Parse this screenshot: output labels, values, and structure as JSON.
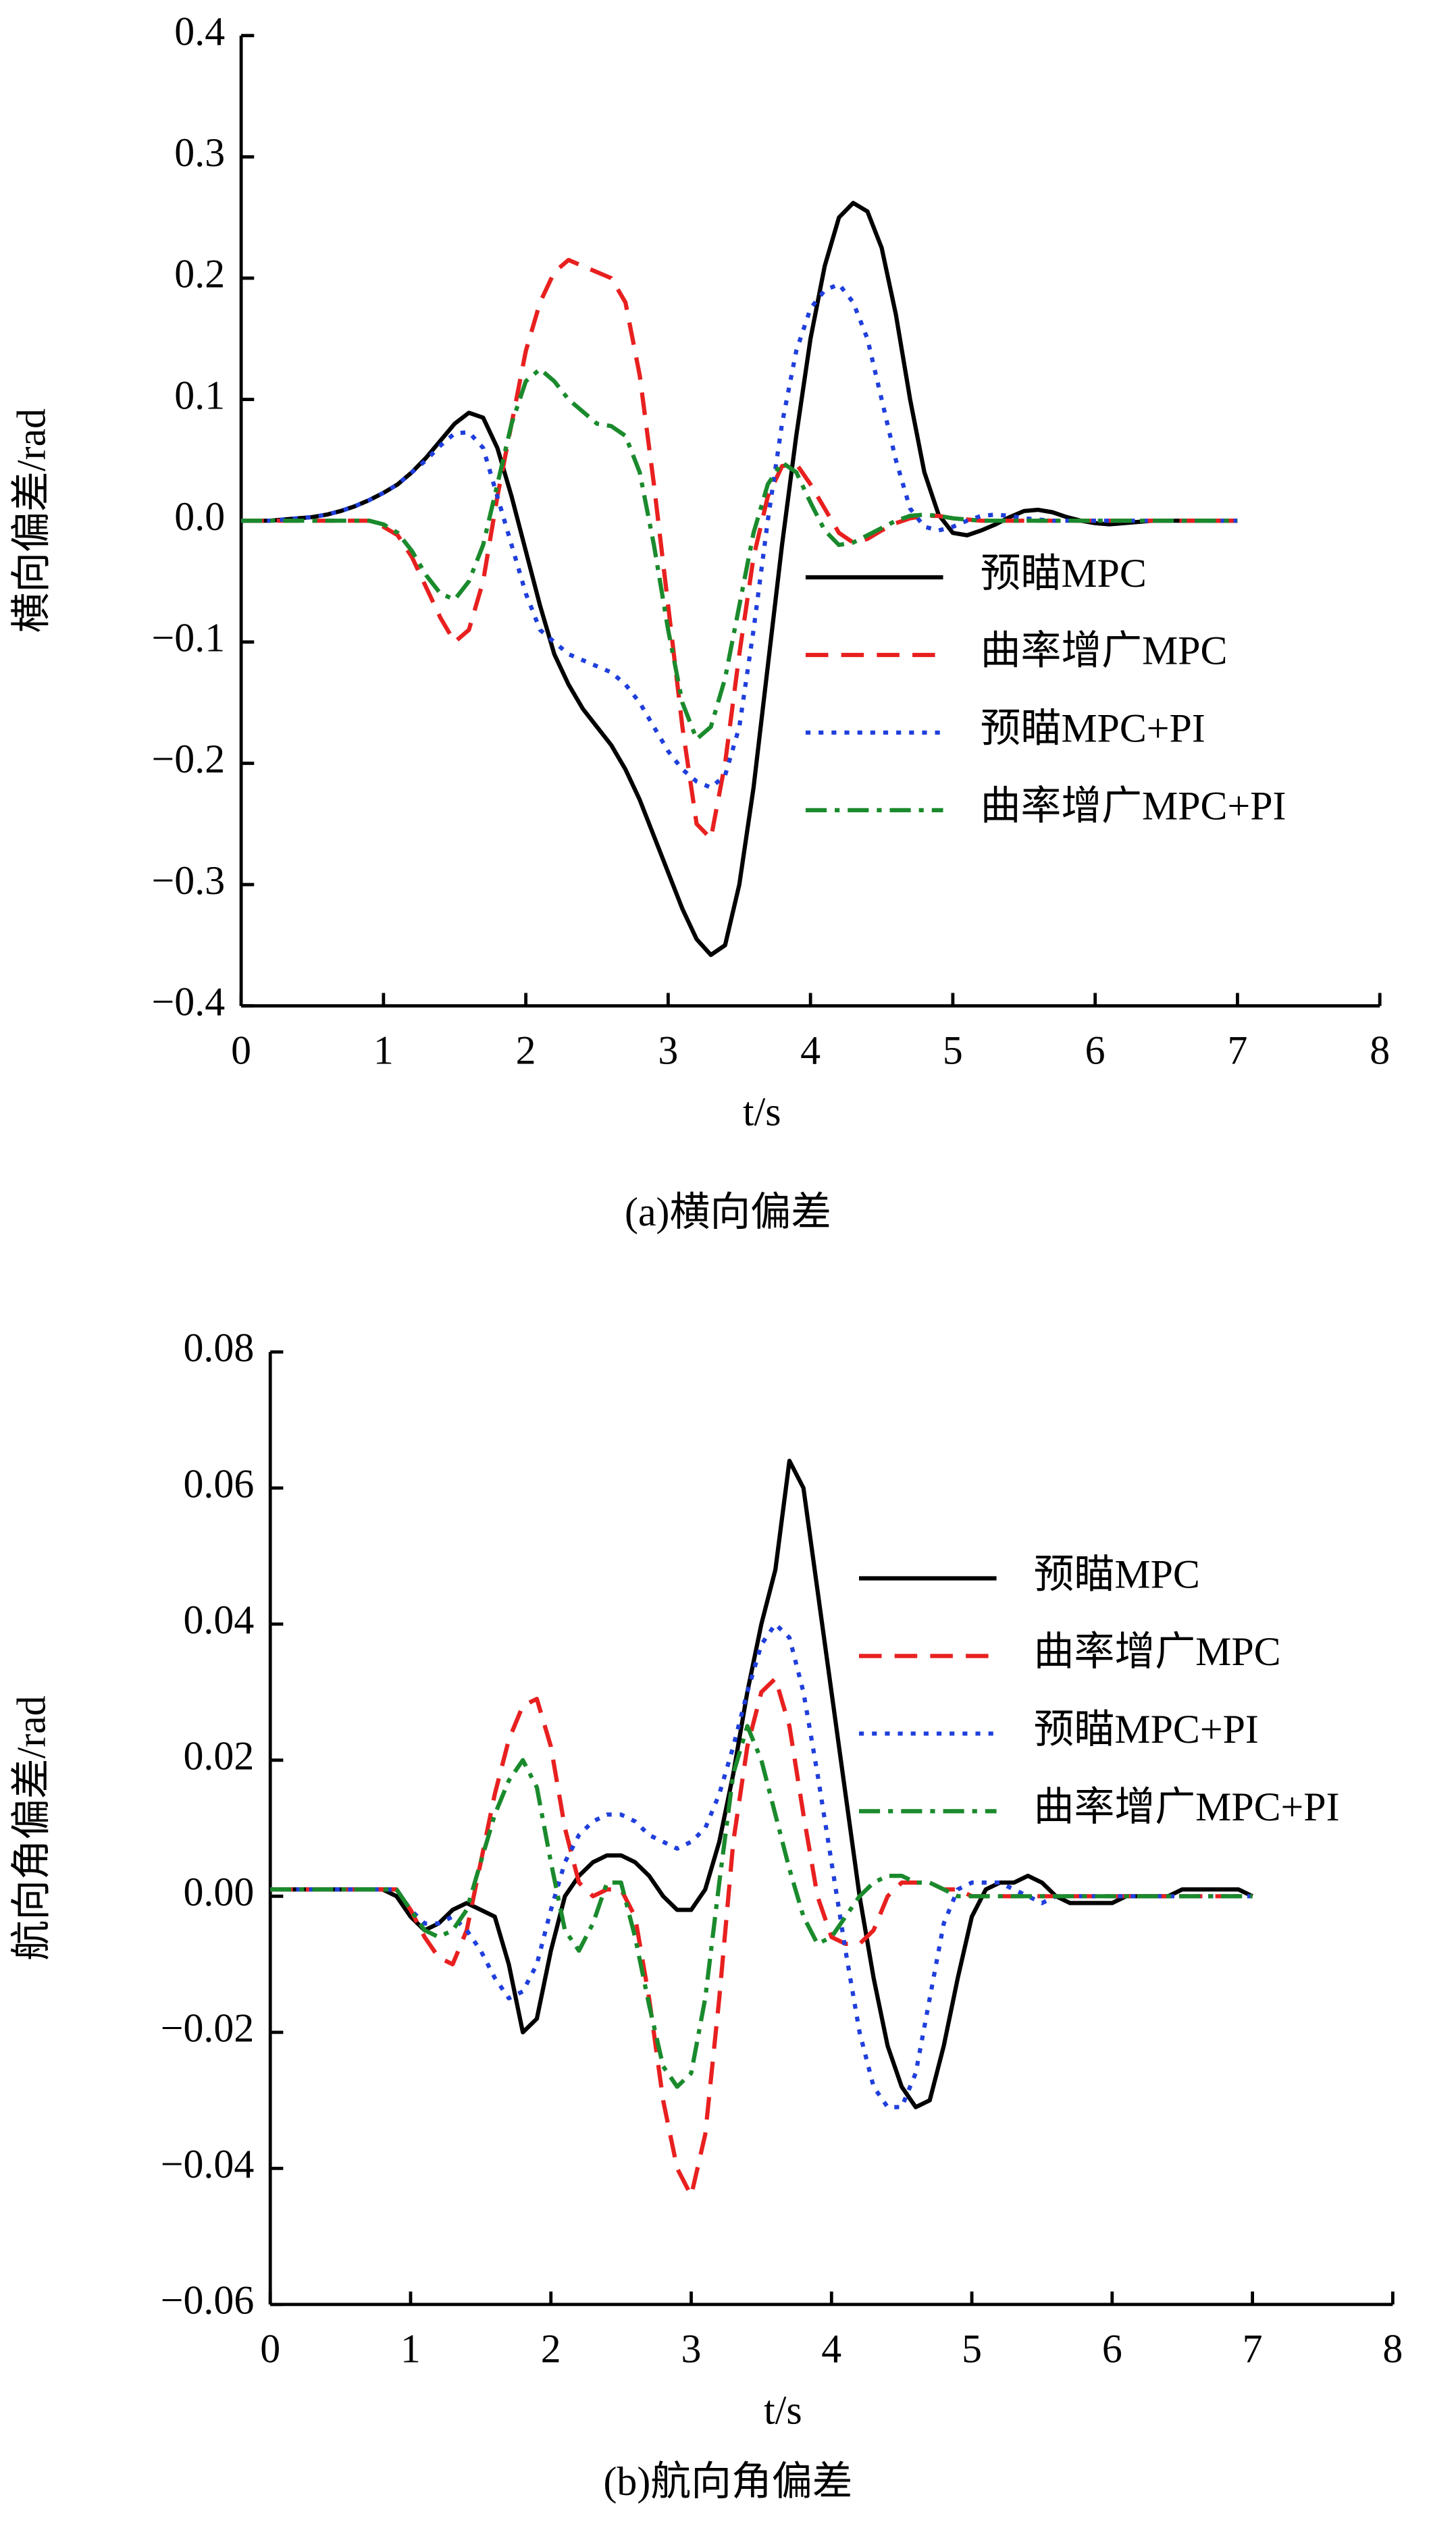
{
  "chart_data": [
    {
      "type": "line",
      "caption": "(a)横向偏差",
      "xlabel": "t/s",
      "ylabel": "横向偏差/rad",
      "x": [
        0,
        0.1,
        0.2,
        0.3,
        0.4,
        0.5,
        0.6,
        0.7,
        0.8,
        0.9,
        1,
        1.1,
        1.2,
        1.3,
        1.4,
        1.5,
        1.6,
        1.7,
        1.8,
        1.9,
        2,
        2.1,
        2.2,
        2.3,
        2.4,
        2.5,
        2.6,
        2.7,
        2.8,
        2.9,
        3,
        3.1,
        3.2,
        3.3,
        3.4,
        3.5,
        3.6,
        3.7,
        3.8,
        3.9,
        4,
        4.1,
        4.2,
        4.3,
        4.4,
        4.5,
        4.6,
        4.7,
        4.8,
        4.9,
        5,
        5.1,
        5.2,
        5.3,
        5.4,
        5.5,
        5.6,
        5.7,
        5.8,
        5.9,
        6,
        6.1,
        6.2,
        6.3,
        6.4,
        6.5,
        6.6,
        6.7,
        6.8,
        6.9,
        7
      ],
      "series": [
        {
          "name": "预瞄MPC",
          "color": "#000000",
          "linestyle": "solid",
          "values": [
            0,
            0,
            0,
            0.001,
            0.002,
            0.003,
            0.005,
            0.008,
            0.012,
            0.017,
            0.023,
            0.03,
            0.04,
            0.052,
            0.066,
            0.08,
            0.089,
            0.085,
            0.06,
            0.02,
            -0.025,
            -0.07,
            -0.11,
            -0.135,
            -0.155,
            -0.17,
            -0.185,
            -0.205,
            -0.23,
            -0.26,
            -0.29,
            -0.32,
            -0.345,
            -0.358,
            -0.35,
            -0.3,
            -0.22,
            -0.12,
            -0.02,
            0.07,
            0.15,
            0.21,
            0.25,
            0.262,
            0.255,
            0.225,
            0.17,
            0.1,
            0.04,
            0.005,
            -0.01,
            -0.012,
            -0.008,
            -0.003,
            0.003,
            0.008,
            0.009,
            0.007,
            0.003,
            0,
            -0.002,
            -0.003,
            -0.002,
            -0.001,
            0,
            0,
            0,
            0,
            0,
            0,
            0
          ]
        },
        {
          "name": "曲率增广MPC",
          "color": "#e8201f",
          "linestyle": "dashed",
          "values": [
            0,
            0,
            0,
            0,
            0,
            0,
            0,
            0,
            0,
            0,
            -0.005,
            -0.012,
            -0.03,
            -0.055,
            -0.08,
            -0.1,
            -0.09,
            -0.05,
            0.02,
            0.08,
            0.14,
            0.18,
            0.205,
            0.215,
            0.21,
            0.205,
            0.2,
            0.18,
            0.12,
            0.03,
            -0.07,
            -0.17,
            -0.25,
            -0.262,
            -0.2,
            -0.11,
            -0.03,
            0.02,
            0.045,
            0.047,
            0.03,
            0.01,
            -0.01,
            -0.018,
            -0.015,
            -0.008,
            -0.002,
            0.002,
            0.004,
            0.004,
            0.002,
            0.001,
            0,
            0,
            0,
            0,
            0,
            0,
            0,
            0,
            0,
            0,
            0,
            0,
            0,
            0,
            0,
            0,
            0,
            0,
            0
          ]
        },
        {
          "name": "预瞄MPC+PI",
          "color": "#1f3fdc",
          "linestyle": "dotted",
          "values": [
            0,
            0,
            0,
            0.001,
            0.002,
            0.003,
            0.005,
            0.008,
            0.012,
            0.017,
            0.023,
            0.03,
            0.04,
            0.05,
            0.062,
            0.072,
            0.073,
            0.06,
            0.02,
            -0.02,
            -0.06,
            -0.09,
            -0.1,
            -0.11,
            -0.115,
            -0.12,
            -0.125,
            -0.135,
            -0.15,
            -0.17,
            -0.19,
            -0.205,
            -0.215,
            -0.22,
            -0.21,
            -0.17,
            -0.09,
            0,
            0.08,
            0.14,
            0.175,
            0.19,
            0.195,
            0.18,
            0.15,
            0.1,
            0.05,
            0.01,
            -0.005,
            -0.008,
            -0.005,
            0,
            0.004,
            0.005,
            0.004,
            0.002,
            0.001,
            0,
            0,
            0,
            0,
            0,
            0,
            0,
            0,
            0,
            0,
            0,
            0,
            0,
            0
          ]
        },
        {
          "name": "曲率增广MPC+PI",
          "color": "#1a8a2c",
          "linestyle": "dashdot",
          "values": [
            0,
            0,
            0,
            0,
            0,
            0,
            0,
            0,
            0,
            0,
            -0.003,
            -0.01,
            -0.025,
            -0.045,
            -0.06,
            -0.065,
            -0.05,
            -0.02,
            0.03,
            0.08,
            0.115,
            0.125,
            0.115,
            0.1,
            0.09,
            0.08,
            0.078,
            0.07,
            0.04,
            -0.02,
            -0.09,
            -0.15,
            -0.18,
            -0.17,
            -0.13,
            -0.07,
            -0.01,
            0.03,
            0.048,
            0.04,
            0.015,
            -0.008,
            -0.02,
            -0.018,
            -0.012,
            -0.006,
            0,
            0.004,
            0.005,
            0.004,
            0.002,
            0.001,
            0,
            0,
            0,
            0,
            0,
            0,
            0,
            0,
            0,
            0,
            0,
            0,
            0,
            0,
            0,
            0,
            0,
            0,
            0
          ]
        }
      ],
      "xlim": [
        0,
        8
      ],
      "xticks": [
        0,
        1,
        2,
        3,
        4,
        5,
        6,
        7,
        8
      ],
      "ylim": [
        -0.4,
        0.4
      ],
      "yticks": [
        {
          "value": -0.4,
          "label": "−0.4"
        },
        {
          "value": -0.3,
          "label": "−0.3"
        },
        {
          "value": -0.2,
          "label": "−0.2"
        },
        {
          "value": -0.1,
          "label": "−0.1"
        },
        {
          "value": 0,
          "label": "0.0"
        },
        0.1,
        0.2,
        0.3,
        0.4
      ],
      "legend": "right"
    },
    {
      "type": "line",
      "caption": "(b)航向角偏差",
      "xlabel": "t/s",
      "ylabel": "航向角偏差/rad",
      "x": [
        0,
        0.1,
        0.2,
        0.3,
        0.4,
        0.5,
        0.6,
        0.7,
        0.8,
        0.9,
        1,
        1.1,
        1.2,
        1.3,
        1.4,
        1.5,
        1.6,
        1.7,
        1.8,
        1.9,
        2,
        2.1,
        2.2,
        2.3,
        2.4,
        2.5,
        2.6,
        2.7,
        2.8,
        2.9,
        3,
        3.1,
        3.2,
        3.3,
        3.4,
        3.5,
        3.6,
        3.7,
        3.8,
        3.9,
        4,
        4.1,
        4.2,
        4.3,
        4.4,
        4.5,
        4.6,
        4.7,
        4.8,
        4.9,
        5,
        5.1,
        5.2,
        5.3,
        5.4,
        5.5,
        5.6,
        5.7,
        5.8,
        5.9,
        6,
        6.1,
        6.2,
        6.3,
        6.4,
        6.5,
        6.6,
        6.7,
        6.8,
        6.9,
        7
      ],
      "series": [
        {
          "name": "预瞄MPC",
          "color": "#000000",
          "linestyle": "solid",
          "values": [
            0.001,
            0.001,
            0.001,
            0.001,
            0.001,
            0.001,
            0.001,
            0.001,
            0.001,
            0,
            -0.003,
            -0.005,
            -0.004,
            -0.002,
            -0.001,
            -0.002,
            -0.003,
            -0.01,
            -0.02,
            -0.018,
            -0.008,
            0,
            0.003,
            0.005,
            0.006,
            0.006,
            0.005,
            0.003,
            0,
            -0.002,
            -0.002,
            0.001,
            0.008,
            0.018,
            0.03,
            0.04,
            0.048,
            0.064,
            0.06,
            0.045,
            0.03,
            0.015,
            0,
            -0.012,
            -0.022,
            -0.028,
            -0.031,
            -0.03,
            -0.022,
            -0.012,
            -0.003,
            0.001,
            0.002,
            0.002,
            0.003,
            0.002,
            0,
            -0.001,
            -0.001,
            -0.001,
            -0.001,
            0,
            0,
            0,
            0,
            0.001,
            0.001,
            0.001,
            0.001,
            0.001,
            0
          ]
        },
        {
          "name": "曲率增广MPC",
          "color": "#e8201f",
          "linestyle": "dashed",
          "values": [
            0.001,
            0.001,
            0.001,
            0.001,
            0.001,
            0.001,
            0.001,
            0.001,
            0.001,
            0.001,
            -0.002,
            -0.006,
            -0.009,
            -0.01,
            -0.005,
            0.005,
            0.015,
            0.023,
            0.028,
            0.029,
            0.022,
            0.01,
            0.002,
            0,
            0.001,
            0.001,
            -0.003,
            -0.015,
            -0.03,
            -0.04,
            -0.044,
            -0.035,
            -0.015,
            0.008,
            0.022,
            0.03,
            0.032,
            0.025,
            0.012,
            0,
            -0.006,
            -0.007,
            -0.007,
            -0.005,
            0,
            0.002,
            0.002,
            0.002,
            0.001,
            0.001,
            0,
            0,
            0,
            0,
            0,
            0,
            0,
            0,
            0,
            0,
            0,
            0,
            0,
            0,
            0,
            0,
            0,
            0,
            0,
            0,
            0
          ]
        },
        {
          "name": "预瞄MPC+PI",
          "color": "#1f3fdc",
          "linestyle": "dotted",
          "values": [
            0.001,
            0.001,
            0.001,
            0.001,
            0.001,
            0.001,
            0.001,
            0.001,
            0.001,
            0.001,
            -0.002,
            -0.004,
            -0.004,
            -0.003,
            -0.005,
            -0.008,
            -0.012,
            -0.015,
            -0.014,
            -0.01,
            -0.002,
            0.005,
            0.009,
            0.011,
            0.012,
            0.012,
            0.011,
            0.009,
            0.008,
            0.007,
            0.008,
            0.01,
            0.015,
            0.022,
            0.03,
            0.037,
            0.04,
            0.038,
            0.03,
            0.018,
            0.005,
            -0.008,
            -0.02,
            -0.028,
            -0.031,
            -0.031,
            -0.026,
            -0.015,
            -0.004,
            0.001,
            0.002,
            0.002,
            0.002,
            0.001,
            0,
            -0.001,
            0,
            0,
            0,
            0,
            0,
            0,
            0,
            0,
            0,
            0,
            0,
            0,
            0,
            0,
            0
          ]
        },
        {
          "name": "曲率增广MPC+PI",
          "color": "#1a8a2c",
          "linestyle": "dashdot",
          "values": [
            0.001,
            0.001,
            0.001,
            0.001,
            0.001,
            0.001,
            0.001,
            0.001,
            0.001,
            0.001,
            -0.002,
            -0.005,
            -0.006,
            -0.005,
            -0.002,
            0.005,
            0.012,
            0.017,
            0.02,
            0.016,
            0.005,
            -0.005,
            -0.008,
            -0.004,
            0.002,
            0.002,
            -0.006,
            -0.016,
            -0.025,
            -0.028,
            -0.026,
            -0.015,
            0.002,
            0.018,
            0.025,
            0.02,
            0.012,
            0.004,
            -0.003,
            -0.007,
            -0.006,
            -0.003,
            0,
            0.002,
            0.003,
            0.003,
            0.002,
            0.002,
            0.001,
            0,
            0,
            0,
            0,
            0,
            0,
            0,
            0,
            0,
            0,
            0,
            0,
            0,
            0,
            0,
            0,
            0,
            0,
            0,
            0,
            0,
            0
          ]
        }
      ],
      "xlim": [
        0,
        8
      ],
      "xticks": [
        0,
        1,
        2,
        3,
        4,
        5,
        6,
        7,
        8
      ],
      "ylim": [
        -0.06,
        0.08
      ],
      "yticks": [
        {
          "value": -0.06,
          "label": "−0.06"
        },
        {
          "value": -0.04,
          "label": "−0.04"
        },
        {
          "value": -0.02,
          "label": "−0.02"
        },
        {
          "value": 0,
          "label": "0.00"
        },
        0.02,
        0.04,
        0.06,
        0.08
      ],
      "legend": "right"
    }
  ]
}
